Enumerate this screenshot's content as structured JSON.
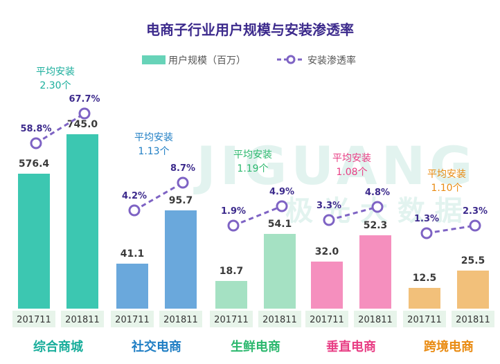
{
  "chart_data": {
    "type": "bar",
    "title": "电商子行业用户规模与安装渗透率",
    "legend": {
      "bar_label": "用户规模（百万）",
      "line_label": "安装渗透率"
    },
    "periods": [
      "201711",
      "201811"
    ],
    "watermark": {
      "line1": "JIGUANG",
      "line2": "极 光 大 数 据"
    },
    "groups": [
      {
        "name": "综合商城",
        "color": "#1aae9c",
        "bar_color": "#3cc7b1",
        "users": [
          576.4,
          745.0
        ],
        "user_labels": [
          "576.4",
          "745.0"
        ],
        "penetration": [
          58.8,
          67.7
        ],
        "penetration_labels": [
          "58.8%",
          "67.7%"
        ],
        "avg_label": "平均安装",
        "avg_value": "2.30个"
      },
      {
        "name": "社交电商",
        "color": "#1f7ec4",
        "bar_color": "#6aa8dc",
        "users": [
          41.1,
          95.7
        ],
        "user_labels": [
          "41.1",
          "95.7"
        ],
        "penetration": [
          4.2,
          8.7
        ],
        "penetration_labels": [
          "4.2%",
          "8.7%"
        ],
        "avg_label": "平均安装",
        "avg_value": "1.13个"
      },
      {
        "name": "生鲜电商",
        "color": "#2cb86e",
        "bar_color": "#a5e1c3",
        "users": [
          18.7,
          54.1
        ],
        "user_labels": [
          "18.7",
          "54.1"
        ],
        "penetration": [
          1.9,
          4.9
        ],
        "penetration_labels": [
          "1.9%",
          "4.9%"
        ],
        "avg_label": "平均安装",
        "avg_value": "1.19个"
      },
      {
        "name": "垂直电商",
        "color": "#e83d84",
        "bar_color": "#f58fbe",
        "users": [
          32.0,
          52.3
        ],
        "user_labels": [
          "32.0",
          "52.3"
        ],
        "penetration": [
          3.3,
          4.8
        ],
        "penetration_labels": [
          "3.3%",
          "4.8%"
        ],
        "avg_label": "平均安装",
        "avg_value": "1.08个"
      },
      {
        "name": "跨境电商",
        "color": "#e98b12",
        "bar_color": "#f2c07a",
        "users": [
          12.5,
          25.5
        ],
        "user_labels": [
          "12.5",
          "25.5"
        ],
        "penetration": [
          1.3,
          2.3
        ],
        "penetration_labels": [
          "1.3%",
          "2.3%"
        ],
        "avg_label": "平均安装",
        "avg_value": "1.10个"
      }
    ]
  }
}
